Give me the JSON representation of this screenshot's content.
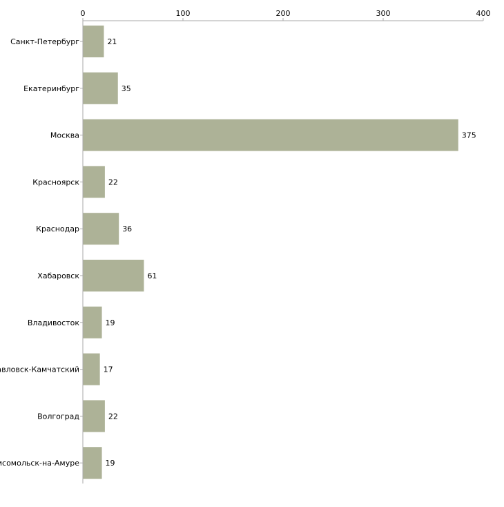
{
  "chart_data": {
    "type": "bar",
    "orientation": "horizontal",
    "categories": [
      "Санкт-Петербург",
      "Екатеринбург",
      "Москва",
      "Красноярск",
      "Краснодар",
      "Хабаровск",
      "Владивосток",
      "Петропавловск-Камчатский",
      "Волгоград",
      "Комсомольск-на-Амуре"
    ],
    "values": [
      21,
      35,
      375,
      22,
      36,
      61,
      19,
      17,
      22,
      19
    ],
    "xlim": [
      0,
      400
    ],
    "xticks": [
      0,
      100,
      200,
      300,
      400
    ],
    "axis_position": "top",
    "grid": false,
    "legend": "none",
    "title": "",
    "xlabel": "",
    "ylabel": "",
    "bar_color": "#adb297",
    "axis_color": "#aaaaaa"
  }
}
